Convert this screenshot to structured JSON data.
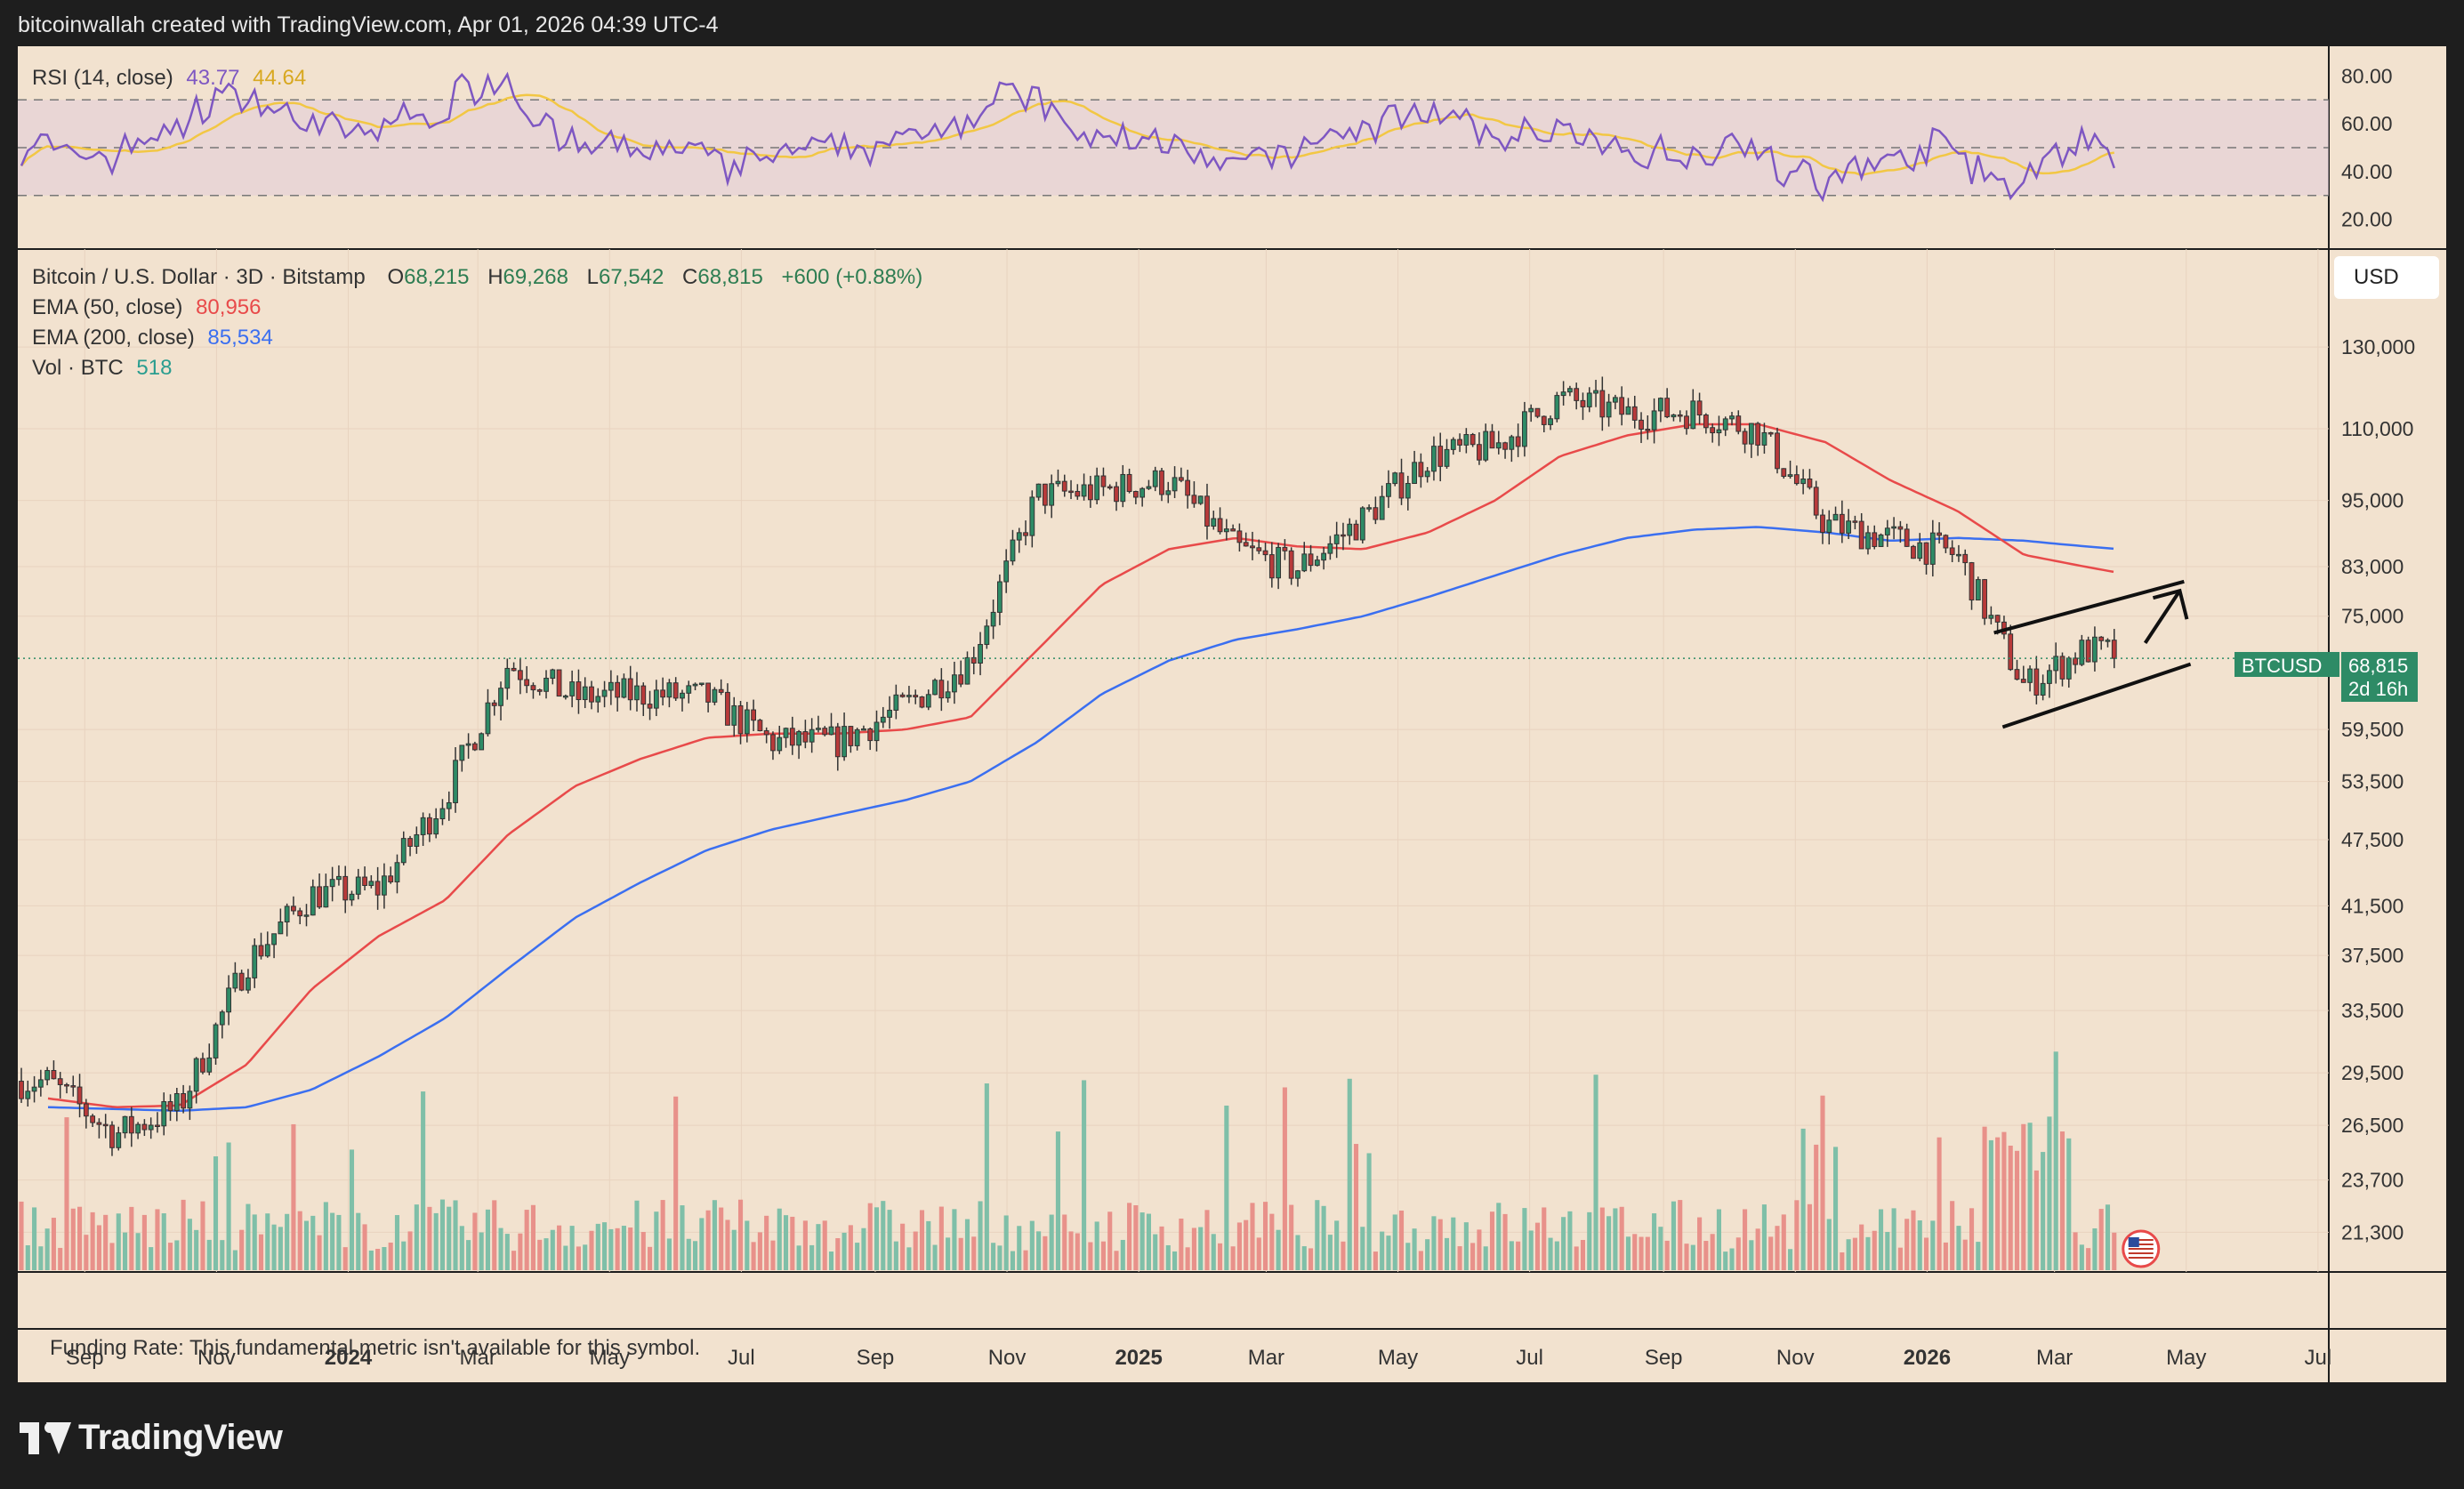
{
  "header": {
    "attribution": "bitcoinwallah created with TradingView.com, Apr 01, 2026 04:39 UTC-4"
  },
  "rsi": {
    "label": "RSI (14, close)",
    "value": "43.77",
    "ma_value": "44.64",
    "axis_ticks": [
      "80.00",
      "60.00",
      "40.00",
      "20.00"
    ],
    "levels": [
      70,
      50,
      30
    ],
    "colors": {
      "rsi": "#7e57c2",
      "ma": "#f2c744",
      "band": "#e3cfd8"
    }
  },
  "main_legend": {
    "symbol": "Bitcoin / U.S. Dollar · 3D · Bitstamp",
    "open_label": "O",
    "open": "68,215",
    "high_label": "H",
    "high": "69,268",
    "low_label": "L",
    "low": "67,542",
    "close_label": "C",
    "close": "68,815",
    "change": "+600 (+0.88%)",
    "ema50_label": "EMA (50, close)",
    "ema50_value": "80,956",
    "ema200_label": "EMA (200, close)",
    "ema200_value": "85,534",
    "vol_label": "Vol · BTC",
    "vol_value": "518"
  },
  "price_axis": {
    "currency_button": "USD",
    "ticks": [
      "130,000",
      "110,000",
      "95,000",
      "83,000",
      "75,000",
      "59,500",
      "53,500",
      "47,500",
      "41,500",
      "37,500",
      "33,500",
      "29,500",
      "26,500",
      "23,700",
      "21,300"
    ],
    "last_price_symbol": "BTCUSD",
    "last_price": "68,815",
    "countdown": "2d 16h"
  },
  "time_axis": {
    "labels": [
      "Sep",
      "Nov",
      "2024",
      "Mar",
      "May",
      "Jul",
      "Sep",
      "Nov",
      "2025",
      "Mar",
      "May",
      "Jul",
      "Sep",
      "Nov",
      "2026",
      "Mar",
      "May",
      "Jul"
    ],
    "bold": [
      "2024",
      "2025",
      "2026"
    ]
  },
  "funding_rate": {
    "text": "Funding Rate: This fundamental metric isn't available for this symbol."
  },
  "branding": {
    "logo_text": "TradingView"
  },
  "colors": {
    "background": "#f2e2cf",
    "up": "#2e8b66",
    "down": "#b83a3a",
    "ema50": "#e84a4a",
    "ema200": "#3b6ff0",
    "vol_up": "#7fbfa8",
    "vol_down": "#e8918a"
  },
  "chart_data": {
    "type": "line",
    "title": "Bitcoin / U.S. Dollar · 3D · Bitstamp",
    "ylog": true,
    "ylim": [
      20000,
      145000
    ],
    "x": [
      "2023-08",
      "2023-09",
      "2023-10",
      "2023-11",
      "2023-12",
      "2024-01",
      "2024-02",
      "2024-03",
      "2024-04",
      "2024-05",
      "2024-06",
      "2024-07",
      "2024-08",
      "2024-09",
      "2024-10",
      "2024-11",
      "2024-12",
      "2025-01",
      "2025-02",
      "2025-03",
      "2025-04",
      "2025-05",
      "2025-06",
      "2025-07",
      "2025-08",
      "2025-09",
      "2025-10",
      "2025-11",
      "2025-12",
      "2026-01",
      "2026-02",
      "2026-03",
      "2026-04"
    ],
    "series": [
      {
        "name": "Bitcoin / U.S. Dollar",
        "values": [
          29000,
          26000,
          27500,
          37000,
          42500,
          43000,
          52000,
          68000,
          63500,
          64000,
          63500,
          58000,
          58000,
          62500,
          68500,
          96000,
          97000,
          99000,
          86000,
          82500,
          91500,
          104000,
          106000,
          117000,
          113500,
          114000,
          109500,
          90500,
          88000,
          85000,
          65000,
          70000,
          68815
        ]
      },
      {
        "name": "EMA (50, close)",
        "values": [
          28000,
          27500,
          27600,
          30000,
          35000,
          39000,
          42000,
          48000,
          53000,
          56000,
          58500,
          59000,
          59000,
          59500,
          61000,
          70000,
          80000,
          86000,
          88000,
          86500,
          86000,
          89000,
          95000,
          104000,
          108500,
          111000,
          111000,
          107000,
          99000,
          93000,
          85000,
          83000,
          80956
        ]
      },
      {
        "name": "EMA (200, close)",
        "values": [
          27500,
          27400,
          27300,
          27500,
          28500,
          30500,
          33000,
          36500,
          40500,
          43500,
          46500,
          48500,
          50000,
          51500,
          53500,
          58000,
          64000,
          68500,
          71500,
          73000,
          75000,
          78000,
          81500,
          85000,
          88000,
          89500,
          90000,
          89000,
          87500,
          88000,
          87500,
          86500,
          85534
        ]
      }
    ],
    "annotations": [
      "ascending channel (bear flag)",
      "upward arrow"
    ]
  }
}
